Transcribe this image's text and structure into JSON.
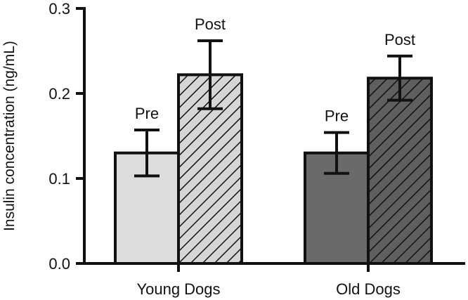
{
  "chart_data": {
    "type": "bar",
    "title": "",
    "xlabel": "",
    "ylabel": "Insulin concentration (ng/mL)",
    "ylim": [
      0,
      0.3
    ],
    "yticks": [
      0.0,
      0.1,
      0.2,
      0.3
    ],
    "ytick_labels": [
      "0.0",
      "0.1",
      "0.2",
      "0.3"
    ],
    "categories": [
      "Young Dogs",
      "Old Dogs"
    ],
    "series": [
      {
        "name": "Pre",
        "values": [
          0.13,
          0.13
        ],
        "errors": [
          0.027,
          0.024
        ]
      },
      {
        "name": "Post",
        "values": [
          0.222,
          0.218
        ],
        "errors": [
          0.04,
          0.026
        ]
      }
    ],
    "colors": {
      "young_pre": "#dcdcdc",
      "young_post": "#cfcfcf",
      "old_pre": "#6a6a6a",
      "old_post": "#5a5a5a",
      "stroke": "#111111"
    }
  }
}
